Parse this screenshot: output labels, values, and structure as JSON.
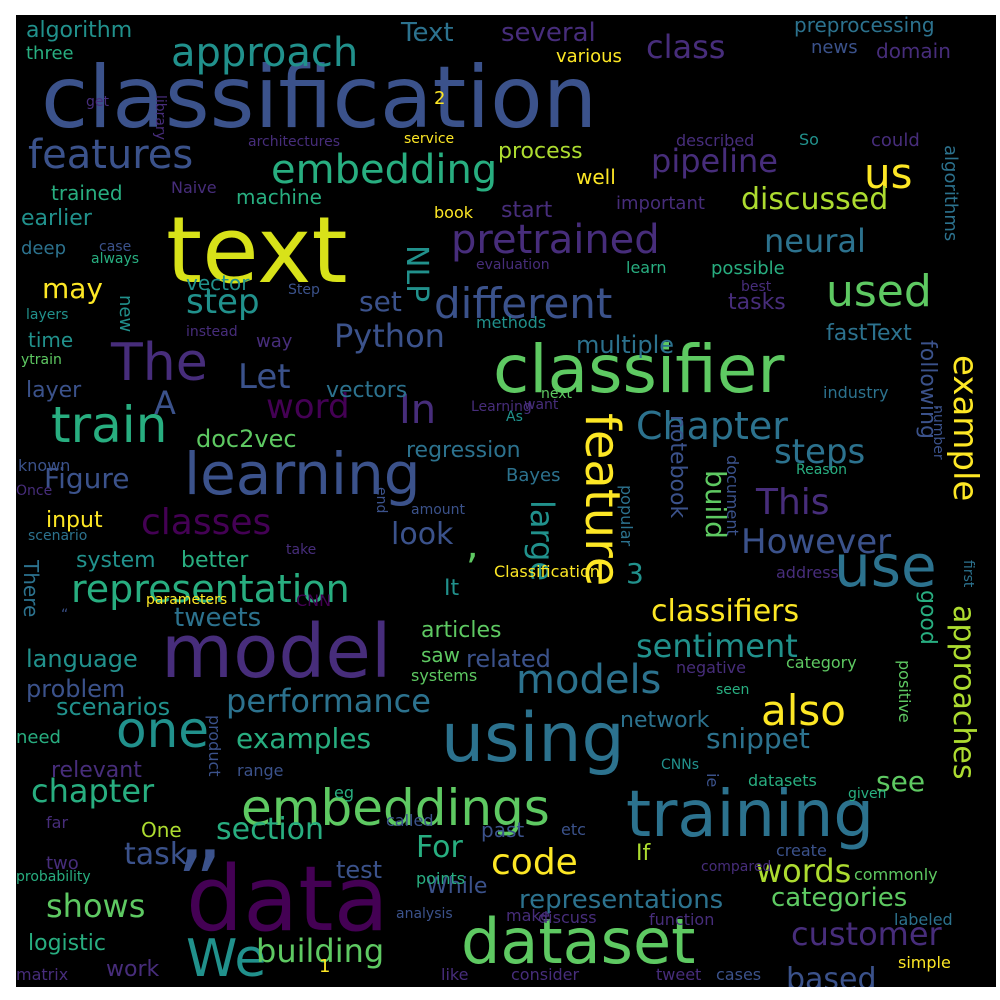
{
  "colors": {
    "background": "#000000",
    "page": "#ffffff",
    "palette": [
      "#440154",
      "#472d7b",
      "#3b528b",
      "#2c728e",
      "#21918c",
      "#28ae80",
      "#5ec962",
      "#addc30",
      "#fde725"
    ]
  },
  "words": [
    {
      "text": "classification",
      "color": "#3b528b"
    },
    {
      "text": "text",
      "color": "#d8e219"
    },
    {
      "text": "model",
      "color": "#472d7b"
    },
    {
      "text": "data",
      "color": "#440154"
    },
    {
      "text": "classifier",
      "color": "#5ec962"
    },
    {
      "text": "using",
      "color": "#2c728e"
    },
    {
      "text": "training",
      "color": "#2c728e"
    },
    {
      "text": "dataset",
      "color": "#5ec962"
    },
    {
      "text": "learning",
      "color": "#3b528b"
    },
    {
      "text": "use",
      "color": "#2c728e"
    },
    {
      "text": "feature",
      "color": "#fde725"
    },
    {
      "text": "embeddings",
      "color": "#5ec962"
    },
    {
      "text": "different",
      "color": "#3b528b"
    },
    {
      "text": "train",
      "color": "#28ae80"
    },
    {
      "text": "We",
      "color": "#21918c"
    },
    {
      "text": "one",
      "color": "#21918c"
    },
    {
      "text": "representation",
      "color": "#28ae80"
    },
    {
      "text": "The",
      "color": "#472d7b"
    },
    {
      "text": "embedding",
      "color": "#28ae80"
    },
    {
      "text": "features",
      "color": "#3b528b"
    },
    {
      "text": "models",
      "color": "#2c728e"
    },
    {
      "text": "also",
      "color": "#fde725"
    },
    {
      "text": "used",
      "color": "#5ec962"
    },
    {
      "text": "approach",
      "color": "#21918c"
    },
    {
      "text": "us",
      "color": "#fde725"
    },
    {
      "text": "code",
      "color": "#fde725"
    },
    {
      "text": "customer",
      "color": "#472d7b"
    },
    {
      "text": "classes",
      "color": "#440154"
    },
    {
      "text": "pretrained",
      "color": "#472d7b"
    },
    {
      "text": "example",
      "color": "#fde725"
    },
    {
      "text": "Chapter",
      "color": "#2c728e"
    },
    {
      "text": "steps",
      "color": "#2c728e"
    },
    {
      "text": "This",
      "color": "#472d7b"
    },
    {
      "text": "However",
      "color": "#3b528b"
    },
    {
      "text": "classifiers",
      "color": "#fde725"
    },
    {
      "text": "performance",
      "color": "#2c728e"
    },
    {
      "text": "building",
      "color": "#5ec962"
    },
    {
      "text": "words",
      "color": "#addc30"
    },
    {
      "text": "section",
      "color": "#28ae80"
    },
    {
      "text": "chapter",
      "color": "#28ae80"
    },
    {
      "text": "approaches",
      "color": "#addc30"
    },
    {
      "text": "sentiment",
      "color": "#21918c"
    },
    {
      "text": "large",
      "color": "#21918c"
    },
    {
      "text": "In",
      "color": "#472d7b"
    },
    {
      "text": "word",
      "color": "#440154"
    },
    {
      "text": "Let",
      "color": "#3b528b"
    },
    {
      "text": "step",
      "color": "#21918c"
    },
    {
      "text": "neural",
      "color": "#2c728e"
    },
    {
      "text": "discussed",
      "color": "#addc30"
    },
    {
      "text": "pipeline",
      "color": "#472d7b"
    },
    {
      "text": "snippet",
      "color": "#2c728e"
    },
    {
      "text": "examples",
      "color": "#28ae80"
    },
    {
      "text": "based",
      "color": "#3b528b"
    },
    {
      "text": "shows",
      "color": "#5ec962"
    },
    {
      "text": "categories",
      "color": "#5ec962"
    },
    {
      "text": "representations",
      "color": "#2c728e"
    },
    {
      "text": "Python",
      "color": "#3b528b"
    },
    {
      "text": "build",
      "color": "#5ec962"
    },
    {
      "text": "look",
      "color": "#3b528b"
    },
    {
      "text": "class",
      "color": "#472d7b"
    },
    {
      "text": "task",
      "color": "#3b528b"
    },
    {
      "text": "For",
      "color": "#28ae80"
    },
    {
      "text": "see",
      "color": "#5ec962"
    },
    {
      "text": "may",
      "color": "#fde725"
    },
    {
      "text": "Figure",
      "color": "#3b528b"
    },
    {
      "text": "tweets",
      "color": "#2c728e"
    },
    {
      "text": "set",
      "color": "#3b528b"
    },
    {
      "text": "NLP",
      "color": "#21918c"
    },
    {
      "text": "doc2vec",
      "color": "#5ec962"
    },
    {
      "text": "regression",
      "color": "#2c728e"
    },
    {
      "text": "multiple",
      "color": "#2c728e"
    },
    {
      "text": "process",
      "color": "#addc30"
    },
    {
      "text": "scenarios",
      "color": "#21918c"
    },
    {
      "text": "problem",
      "color": "#3b528b"
    },
    {
      "text": "language",
      "color": "#21918c"
    },
    {
      "text": "logistic",
      "color": "#28ae80"
    },
    {
      "text": "network",
      "color": "#2c728e"
    },
    {
      "text": "related",
      "color": "#3b528b"
    },
    {
      "text": "articles",
      "color": "#5ec962"
    },
    {
      "text": "layer",
      "color": "#3b528b"
    },
    {
      "text": "vectors",
      "color": "#2c728e"
    },
    {
      "text": "fastText",
      "color": "#2c728e"
    },
    {
      "text": "following",
      "color": "#3b528b"
    },
    {
      "text": "notebook",
      "color": "#3b528b"
    },
    {
      "text": "relevant",
      "color": "#472d7b"
    },
    {
      "text": "better",
      "color": "#28ae80"
    },
    {
      "text": "system",
      "color": "#21918c"
    },
    {
      "text": "input",
      "color": "#fde725"
    },
    {
      "text": "good",
      "color": "#28ae80"
    },
    {
      "text": "If",
      "color": "#addc30"
    },
    {
      "text": "While",
      "color": "#3b528b"
    },
    {
      "text": "test",
      "color": "#3b528b"
    },
    {
      "text": "work",
      "color": "#472d7b"
    },
    {
      "text": "One",
      "color": "#addc30"
    },
    {
      "text": "past",
      "color": "#3b528b"
    },
    {
      "text": "saw",
      "color": "#5ec962"
    },
    {
      "text": "It",
      "color": "#21918c"
    },
    {
      "text": "A",
      "color": "#3b528b"
    },
    {
      "text": "3",
      "color": "#21918c"
    },
    {
      "text": "machine",
      "color": "#28ae80"
    },
    {
      "text": "trained",
      "color": "#28ae80"
    },
    {
      "text": "earlier",
      "color": "#21918c"
    },
    {
      "text": "deep",
      "color": "#2c728e"
    },
    {
      "text": "vector",
      "color": "#21918c"
    },
    {
      "text": "time",
      "color": "#21918c"
    },
    {
      "text": "new",
      "color": "#21918c"
    },
    {
      "text": "way",
      "color": "#472d7b"
    },
    {
      "text": "There",
      "color": "#2c728e"
    },
    {
      "text": "need",
      "color": "#28ae80"
    },
    {
      "text": "two",
      "color": "#472d7b"
    },
    {
      "text": "algorithm",
      "color": "#21918c"
    },
    {
      "text": "three",
      "color": "#28ae80"
    },
    {
      "text": "Text",
      "color": "#2c728e"
    },
    {
      "text": "several",
      "color": "#472d7b"
    },
    {
      "text": "preprocessing",
      "color": "#2c728e"
    },
    {
      "text": "news",
      "color": "#3b528b"
    },
    {
      "text": "domain",
      "color": "#472d7b"
    },
    {
      "text": "various",
      "color": "#fde725"
    },
    {
      "text": "algorithms",
      "color": "#2c728e"
    },
    {
      "text": "well",
      "color": "#fde725"
    },
    {
      "text": "start",
      "color": "#472d7b"
    },
    {
      "text": "important",
      "color": "#472d7b"
    },
    {
      "text": "possible",
      "color": "#28ae80"
    },
    {
      "text": "tasks",
      "color": "#472d7b"
    },
    {
      "text": "learn",
      "color": "#28ae80"
    },
    {
      "text": "methods",
      "color": "#21918c"
    },
    {
      "text": "industry",
      "color": "#2c728e"
    },
    {
      "text": "number",
      "color": "#3b528b"
    },
    {
      "text": "next",
      "color": "#5ec962"
    },
    {
      "text": "Bayes",
      "color": "#2c728e"
    },
    {
      "text": "Reason",
      "color": "#28ae80"
    },
    {
      "text": "document",
      "color": "#3b528b"
    },
    {
      "text": "popular",
      "color": "#2c728e"
    },
    {
      "text": "address",
      "color": "#472d7b"
    },
    {
      "text": "first",
      "color": "#2c728e"
    },
    {
      "text": "category",
      "color": "#5ec962"
    },
    {
      "text": "negative",
      "color": "#472d7b"
    },
    {
      "text": "positive",
      "color": "#5ec962"
    },
    {
      "text": "seen",
      "color": "#28ae80"
    },
    {
      "text": "systems",
      "color": "#5ec962"
    },
    {
      "text": "datasets",
      "color": "#28ae80"
    },
    {
      "text": "given",
      "color": "#28ae80"
    },
    {
      "text": "range",
      "color": "#3b528b"
    },
    {
      "text": "product",
      "color": "#3b528b"
    },
    {
      "text": "eg",
      "color": "#28ae80"
    },
    {
      "text": "CNNs",
      "color": "#21918c"
    },
    {
      "text": "ie",
      "color": "#3b528b"
    },
    {
      "text": "create",
      "color": "#3b528b"
    },
    {
      "text": "compared",
      "color": "#472d7b"
    },
    {
      "text": "commonly",
      "color": "#5ec962"
    },
    {
      "text": "called",
      "color": "#3b528b"
    },
    {
      "text": "etc",
      "color": "#3b528b"
    },
    {
      "text": "far",
      "color": "#472d7b"
    },
    {
      "text": "probability",
      "color": "#28ae80"
    },
    {
      "text": "points",
      "color": "#28ae80"
    },
    {
      "text": "analysis",
      "color": "#3b528b"
    },
    {
      "text": "make",
      "color": "#472d7b"
    },
    {
      "text": "discuss",
      "color": "#472d7b"
    },
    {
      "text": "function",
      "color": "#472d7b"
    },
    {
      "text": "labeled",
      "color": "#2c728e"
    },
    {
      "text": "matrix",
      "color": "#472d7b"
    },
    {
      "text": "1",
      "color": "#fde725"
    },
    {
      "text": "like",
      "color": "#472d7b"
    },
    {
      "text": "consider",
      "color": "#472d7b"
    },
    {
      "text": "tweet",
      "color": "#472d7b"
    },
    {
      "text": "cases",
      "color": "#3b528b"
    },
    {
      "text": "simple",
      "color": "#fde725"
    },
    {
      "text": "2",
      "color": "#fde725"
    },
    {
      "text": "get",
      "color": "#472d7b"
    },
    {
      "text": "library",
      "color": "#472d7b"
    },
    {
      "text": "architectures",
      "color": "#472d7b"
    },
    {
      "text": "service",
      "color": "#fde725"
    },
    {
      "text": "described",
      "color": "#472d7b"
    },
    {
      "text": "So",
      "color": "#21918c"
    },
    {
      "text": "could",
      "color": "#472d7b"
    },
    {
      "text": "Naive",
      "color": "#472d7b"
    },
    {
      "text": "book",
      "color": "#fde725"
    },
    {
      "text": "case",
      "color": "#3b528b"
    },
    {
      "text": "always",
      "color": "#28ae80"
    },
    {
      "text": "evaluation",
      "color": "#472d7b"
    },
    {
      "text": "best",
      "color": "#472d7b"
    },
    {
      "text": "Step",
      "color": "#3b528b"
    },
    {
      "text": "instead",
      "color": "#472d7b"
    },
    {
      "text": "layers",
      "color": "#21918c"
    },
    {
      "text": "ytrain",
      "color": "#5ec962"
    },
    {
      "text": "want",
      "color": "#472d7b"
    },
    {
      "text": "Learning",
      "color": "#472d7b"
    },
    {
      "text": "As",
      "color": "#21918c"
    },
    {
      "text": "known",
      "color": "#3b528b"
    },
    {
      "text": "Once",
      "color": "#472d7b"
    },
    {
      "text": "end",
      "color": "#3b528b"
    },
    {
      "text": "amount",
      "color": "#3b528b"
    },
    {
      "text": "scenario",
      "color": "#2c728e"
    },
    {
      "text": "take",
      "color": "#472d7b"
    },
    {
      "text": "Classification",
      "color": "#fde725"
    },
    {
      "text": "parameters",
      "color": "#fde725"
    },
    {
      "text": "CNN",
      "color": "#440154"
    },
    {
      "text": "“",
      "color": "#3b528b"
    },
    {
      "text": "”",
      "color": "#3b528b"
    },
    {
      "text": ",",
      "color": "#5ec962"
    }
  ]
}
